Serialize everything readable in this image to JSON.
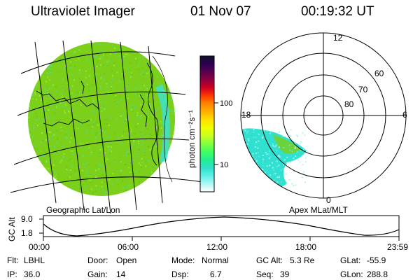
{
  "header": {
    "title": "Ultraviolet Imager",
    "date": "01 Nov 07",
    "time": "00:19:32 UT"
  },
  "colorbar": {
    "unit_label": "photon cm⁻²s⁻¹",
    "ticks": [
      "100",
      "10"
    ],
    "colors": [
      "#101030",
      "#2a0050",
      "#5a0050",
      "#900040",
      "#d00020",
      "#ff3a00",
      "#ff8800",
      "#ffb000",
      "#ffe000",
      "#f0ff00",
      "#c8ff20",
      "#80ff40",
      "#40ff60",
      "#20f090",
      "#30e0c8",
      "#60f0e8",
      "#b0f6f4",
      "#ffffff"
    ]
  },
  "geo_panel": {
    "label": "Geographic Lat/Lon",
    "fill_color": "#7cd01a",
    "edge_color": "#40e0d0"
  },
  "polar_panel": {
    "label": "Apex MLat/MLT",
    "mlt_labels": {
      "top": "12",
      "left": "18",
      "right": "6",
      "bottom": "0"
    },
    "lat_labels": [
      "60",
      "70",
      "80"
    ],
    "blob_color": "#30e0d0",
    "blob_accent": "#7cd01a"
  },
  "altitude_plot": {
    "ylabel": "GC Alt",
    "yticks": [
      "9.0",
      "1.8"
    ],
    "xticks": [
      "00:00",
      "06:00",
      "12:00",
      "18:00",
      "23:59"
    ]
  },
  "status": {
    "row1": [
      {
        "label": "Flt:",
        "value": "LBHL"
      },
      {
        "label": "Door:",
        "value": "Open"
      },
      {
        "label": "Mode:",
        "value": "Normal"
      },
      {
        "label": "GC Alt:",
        "value": "5.3 Re"
      },
      {
        "label": "GLat:",
        "value": "-55.9"
      }
    ],
    "row2": [
      {
        "label": "IP:",
        "value": "36.0"
      },
      {
        "label": "Gain:",
        "value": "14"
      },
      {
        "label": "Dsp:",
        "value": "6.7"
      },
      {
        "label": "Seq:",
        "value": "39"
      },
      {
        "label": "GLon:",
        "value": "288.8"
      }
    ]
  }
}
